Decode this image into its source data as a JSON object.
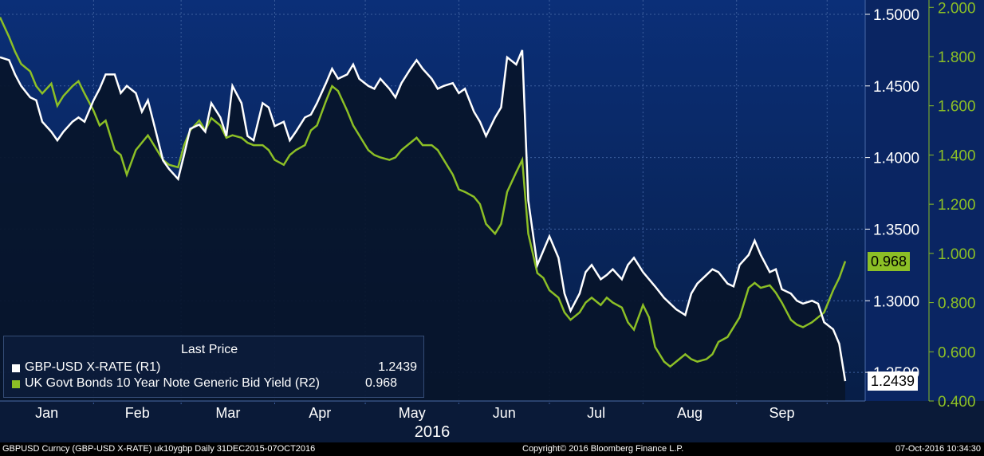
{
  "chart_data": {
    "type": "line",
    "x_months": [
      "Jan",
      "Feb",
      "Mar",
      "Apr",
      "May",
      "Jun",
      "Jul",
      "Aug",
      "Sep"
    ],
    "x_year": "2016",
    "series": [
      {
        "name": "GBP-USD X-RATE (R1)",
        "axis": "R1",
        "color": "#ffffff",
        "last": "1.2439",
        "values": [
          [
            "2016-01-01",
            1.47
          ],
          [
            "2016-01-04",
            1.468
          ],
          [
            "2016-01-06",
            1.458
          ],
          [
            "2016-01-08",
            1.45
          ],
          [
            "2016-01-11",
            1.442
          ],
          [
            "2016-01-13",
            1.44
          ],
          [
            "2016-01-15",
            1.425
          ],
          [
            "2016-01-18",
            1.418
          ],
          [
            "2016-01-20",
            1.412
          ],
          [
            "2016-01-22",
            1.418
          ],
          [
            "2016-01-25",
            1.425
          ],
          [
            "2016-01-27",
            1.428
          ],
          [
            "2016-01-29",
            1.425
          ],
          [
            "2016-02-01",
            1.44
          ],
          [
            "2016-02-03",
            1.448
          ],
          [
            "2016-02-05",
            1.458
          ],
          [
            "2016-02-08",
            1.458
          ],
          [
            "2016-02-10",
            1.445
          ],
          [
            "2016-02-12",
            1.45
          ],
          [
            "2016-02-15",
            1.445
          ],
          [
            "2016-02-17",
            1.432
          ],
          [
            "2016-02-19",
            1.44
          ],
          [
            "2016-02-22",
            1.415
          ],
          [
            "2016-02-24",
            1.398
          ],
          [
            "2016-02-26",
            1.392
          ],
          [
            "2016-02-29",
            1.385
          ],
          [
            "2016-03-02",
            1.402
          ],
          [
            "2016-03-04",
            1.42
          ],
          [
            "2016-03-07",
            1.423
          ],
          [
            "2016-03-09",
            1.418
          ],
          [
            "2016-03-11",
            1.438
          ],
          [
            "2016-03-14",
            1.428
          ],
          [
            "2016-03-16",
            1.415
          ],
          [
            "2016-03-18",
            1.45
          ],
          [
            "2016-03-21",
            1.438
          ],
          [
            "2016-03-23",
            1.415
          ],
          [
            "2016-03-25",
            1.412
          ],
          [
            "2016-03-28",
            1.438
          ],
          [
            "2016-03-30",
            1.435
          ],
          [
            "2016-04-01",
            1.422
          ],
          [
            "2016-04-04",
            1.425
          ],
          [
            "2016-04-06",
            1.412
          ],
          [
            "2016-04-08",
            1.418
          ],
          [
            "2016-04-11",
            1.428
          ],
          [
            "2016-04-13",
            1.43
          ],
          [
            "2016-04-15",
            1.438
          ],
          [
            "2016-04-18",
            1.452
          ],
          [
            "2016-04-20",
            1.462
          ],
          [
            "2016-04-22",
            1.455
          ],
          [
            "2016-04-25",
            1.458
          ],
          [
            "2016-04-27",
            1.465
          ],
          [
            "2016-04-29",
            1.455
          ],
          [
            "2016-05-02",
            1.45
          ],
          [
            "2016-05-04",
            1.448
          ],
          [
            "2016-05-06",
            1.455
          ],
          [
            "2016-05-09",
            1.448
          ],
          [
            "2016-05-11",
            1.442
          ],
          [
            "2016-05-13",
            1.452
          ],
          [
            "2016-05-16",
            1.462
          ],
          [
            "2016-05-18",
            1.468
          ],
          [
            "2016-05-20",
            1.462
          ],
          [
            "2016-05-23",
            1.455
          ],
          [
            "2016-05-25",
            1.448
          ],
          [
            "2016-05-27",
            1.45
          ],
          [
            "2016-05-30",
            1.452
          ],
          [
            "2016-06-01",
            1.445
          ],
          [
            "2016-06-03",
            1.448
          ],
          [
            "2016-06-06",
            1.432
          ],
          [
            "2016-06-08",
            1.425
          ],
          [
            "2016-06-10",
            1.415
          ],
          [
            "2016-06-13",
            1.428
          ],
          [
            "2016-06-15",
            1.435
          ],
          [
            "2016-06-17",
            1.47
          ],
          [
            "2016-06-20",
            1.465
          ],
          [
            "2016-06-22",
            1.475
          ],
          [
            "2016-06-24",
            1.37
          ],
          [
            "2016-06-27",
            1.325
          ],
          [
            "2016-06-29",
            1.335
          ],
          [
            "2016-07-01",
            1.345
          ],
          [
            "2016-07-04",
            1.33
          ],
          [
            "2016-07-06",
            1.305
          ],
          [
            "2016-07-08",
            1.293
          ],
          [
            "2016-07-11",
            1.305
          ],
          [
            "2016-07-13",
            1.32
          ],
          [
            "2016-07-15",
            1.325
          ],
          [
            "2016-07-18",
            1.315
          ],
          [
            "2016-07-20",
            1.318
          ],
          [
            "2016-07-22",
            1.322
          ],
          [
            "2016-07-25",
            1.315
          ],
          [
            "2016-07-27",
            1.325
          ],
          [
            "2016-07-29",
            1.33
          ],
          [
            "2016-08-01",
            1.32
          ],
          [
            "2016-08-03",
            1.315
          ],
          [
            "2016-08-05",
            1.31
          ],
          [
            "2016-08-08",
            1.302
          ],
          [
            "2016-08-10",
            1.298
          ],
          [
            "2016-08-12",
            1.294
          ],
          [
            "2016-08-15",
            1.29
          ],
          [
            "2016-08-17",
            1.305
          ],
          [
            "2016-08-19",
            1.312
          ],
          [
            "2016-08-22",
            1.318
          ],
          [
            "2016-08-24",
            1.322
          ],
          [
            "2016-08-26",
            1.32
          ],
          [
            "2016-08-29",
            1.312
          ],
          [
            "2016-08-31",
            1.31
          ],
          [
            "2016-09-02",
            1.325
          ],
          [
            "2016-09-05",
            1.332
          ],
          [
            "2016-09-07",
            1.342
          ],
          [
            "2016-09-09",
            1.332
          ],
          [
            "2016-09-12",
            1.32
          ],
          [
            "2016-09-14",
            1.322
          ],
          [
            "2016-09-16",
            1.308
          ],
          [
            "2016-09-19",
            1.305
          ],
          [
            "2016-09-21",
            1.3
          ],
          [
            "2016-09-23",
            1.298
          ],
          [
            "2016-09-26",
            1.3
          ],
          [
            "2016-09-28",
            1.298
          ],
          [
            "2016-09-30",
            1.285
          ],
          [
            "2016-10-03",
            1.28
          ],
          [
            "2016-10-05",
            1.27
          ],
          [
            "2016-10-07",
            1.2439
          ]
        ]
      },
      {
        "name": "UK Govt Bonds 10 Year Note Generic Bid Yield (R2)",
        "axis": "R2",
        "color": "#8cbf26",
        "last": "0.968",
        "values": [
          [
            "2016-01-01",
            1.96
          ],
          [
            "2016-01-04",
            1.88
          ],
          [
            "2016-01-06",
            1.82
          ],
          [
            "2016-01-08",
            1.77
          ],
          [
            "2016-01-11",
            1.74
          ],
          [
            "2016-01-13",
            1.68
          ],
          [
            "2016-01-15",
            1.65
          ],
          [
            "2016-01-18",
            1.69
          ],
          [
            "2016-01-20",
            1.6
          ],
          [
            "2016-01-22",
            1.64
          ],
          [
            "2016-01-25",
            1.68
          ],
          [
            "2016-01-27",
            1.7
          ],
          [
            "2016-01-29",
            1.65
          ],
          [
            "2016-02-01",
            1.58
          ],
          [
            "2016-02-03",
            1.52
          ],
          [
            "2016-02-05",
            1.54
          ],
          [
            "2016-02-08",
            1.42
          ],
          [
            "2016-02-10",
            1.4
          ],
          [
            "2016-02-12",
            1.32
          ],
          [
            "2016-02-15",
            1.42
          ],
          [
            "2016-02-17",
            1.45
          ],
          [
            "2016-02-19",
            1.48
          ],
          [
            "2016-02-22",
            1.42
          ],
          [
            "2016-02-24",
            1.38
          ],
          [
            "2016-02-26",
            1.36
          ],
          [
            "2016-02-29",
            1.35
          ],
          [
            "2016-03-02",
            1.44
          ],
          [
            "2016-03-04",
            1.5
          ],
          [
            "2016-03-07",
            1.54
          ],
          [
            "2016-03-09",
            1.5
          ],
          [
            "2016-03-11",
            1.55
          ],
          [
            "2016-03-14",
            1.52
          ],
          [
            "2016-03-16",
            1.47
          ],
          [
            "2016-03-18",
            1.48
          ],
          [
            "2016-03-21",
            1.47
          ],
          [
            "2016-03-23",
            1.45
          ],
          [
            "2016-03-25",
            1.44
          ],
          [
            "2016-03-28",
            1.44
          ],
          [
            "2016-03-30",
            1.42
          ],
          [
            "2016-04-01",
            1.38
          ],
          [
            "2016-04-04",
            1.36
          ],
          [
            "2016-04-06",
            1.4
          ],
          [
            "2016-04-08",
            1.42
          ],
          [
            "2016-04-11",
            1.44
          ],
          [
            "2016-04-13",
            1.5
          ],
          [
            "2016-04-15",
            1.52
          ],
          [
            "2016-04-18",
            1.62
          ],
          [
            "2016-04-20",
            1.68
          ],
          [
            "2016-04-22",
            1.66
          ],
          [
            "2016-04-25",
            1.58
          ],
          [
            "2016-04-27",
            1.52
          ],
          [
            "2016-04-29",
            1.48
          ],
          [
            "2016-05-02",
            1.42
          ],
          [
            "2016-05-04",
            1.4
          ],
          [
            "2016-05-06",
            1.39
          ],
          [
            "2016-05-09",
            1.38
          ],
          [
            "2016-05-11",
            1.39
          ],
          [
            "2016-05-13",
            1.42
          ],
          [
            "2016-05-16",
            1.45
          ],
          [
            "2016-05-18",
            1.47
          ],
          [
            "2016-05-20",
            1.44
          ],
          [
            "2016-05-23",
            1.44
          ],
          [
            "2016-05-25",
            1.42
          ],
          [
            "2016-05-27",
            1.38
          ],
          [
            "2016-05-30",
            1.32
          ],
          [
            "2016-06-01",
            1.26
          ],
          [
            "2016-06-03",
            1.25
          ],
          [
            "2016-06-06",
            1.23
          ],
          [
            "2016-06-08",
            1.2
          ],
          [
            "2016-06-10",
            1.12
          ],
          [
            "2016-06-13",
            1.08
          ],
          [
            "2016-06-15",
            1.12
          ],
          [
            "2016-06-17",
            1.25
          ],
          [
            "2016-06-20",
            1.33
          ],
          [
            "2016-06-22",
            1.38
          ],
          [
            "2016-06-24",
            1.08
          ],
          [
            "2016-06-27",
            0.92
          ],
          [
            "2016-06-29",
            0.9
          ],
          [
            "2016-07-01",
            0.85
          ],
          [
            "2016-07-04",
            0.82
          ],
          [
            "2016-07-06",
            0.76
          ],
          [
            "2016-07-08",
            0.73
          ],
          [
            "2016-07-11",
            0.76
          ],
          [
            "2016-07-13",
            0.8
          ],
          [
            "2016-07-15",
            0.82
          ],
          [
            "2016-07-18",
            0.79
          ],
          [
            "2016-07-20",
            0.82
          ],
          [
            "2016-07-22",
            0.8
          ],
          [
            "2016-07-25",
            0.78
          ],
          [
            "2016-07-27",
            0.72
          ],
          [
            "2016-07-29",
            0.69
          ],
          [
            "2016-08-01",
            0.79
          ],
          [
            "2016-08-03",
            0.74
          ],
          [
            "2016-08-05",
            0.62
          ],
          [
            "2016-08-08",
            0.56
          ],
          [
            "2016-08-10",
            0.54
          ],
          [
            "2016-08-12",
            0.56
          ],
          [
            "2016-08-15",
            0.59
          ],
          [
            "2016-08-17",
            0.57
          ],
          [
            "2016-08-19",
            0.56
          ],
          [
            "2016-08-22",
            0.57
          ],
          [
            "2016-08-24",
            0.59
          ],
          [
            "2016-08-26",
            0.64
          ],
          [
            "2016-08-29",
            0.66
          ],
          [
            "2016-08-31",
            0.7
          ],
          [
            "2016-09-02",
            0.74
          ],
          [
            "2016-09-05",
            0.86
          ],
          [
            "2016-09-07",
            0.88
          ],
          [
            "2016-09-09",
            0.86
          ],
          [
            "2016-09-12",
            0.87
          ],
          [
            "2016-09-14",
            0.84
          ],
          [
            "2016-09-16",
            0.8
          ],
          [
            "2016-09-19",
            0.73
          ],
          [
            "2016-09-21",
            0.71
          ],
          [
            "2016-09-23",
            0.7
          ],
          [
            "2016-09-26",
            0.72
          ],
          [
            "2016-09-28",
            0.74
          ],
          [
            "2016-09-30",
            0.76
          ],
          [
            "2016-10-03",
            0.85
          ],
          [
            "2016-10-05",
            0.9
          ],
          [
            "2016-10-07",
            0.968
          ]
        ]
      }
    ],
    "axes": {
      "R1": {
        "ticks": [
          "1.5000",
          "1.4500",
          "1.4000",
          "1.3500",
          "1.3000",
          "1.2500"
        ],
        "range": [
          1.23,
          1.51
        ]
      },
      "R2": {
        "ticks": [
          "2.000",
          "1.800",
          "1.600",
          "1.400",
          "1.200",
          "1.000",
          "0.800",
          "0.600",
          "0.400"
        ],
        "range": [
          0.4,
          2.03
        ]
      }
    },
    "grid": true,
    "legend_position": "bottom-left"
  },
  "legend": {
    "header": "Last Price",
    "row1_name": "GBP-USD X-RATE  (R1)",
    "row1_value": "1.2439",
    "row2_name": "UK Govt Bonds 10 Year Note Generic Bid Yield  (R2)",
    "row2_value": "0.968"
  },
  "footer": {
    "left": "GBPUSD Curncy (GBP-USD X-RATE) uk10ygbp  Daily 31DEC2015-07OCT2016",
    "middle": "Copyright© 2016 Bloomberg Finance L.P.",
    "right": "07-Oct-2016 10:34:30"
  },
  "colors": {
    "bg_top": "#0b2f78",
    "bg_bottom": "#051630",
    "fill": "#08152a",
    "white_line": "#ffffff",
    "green_line": "#8cbf26"
  }
}
